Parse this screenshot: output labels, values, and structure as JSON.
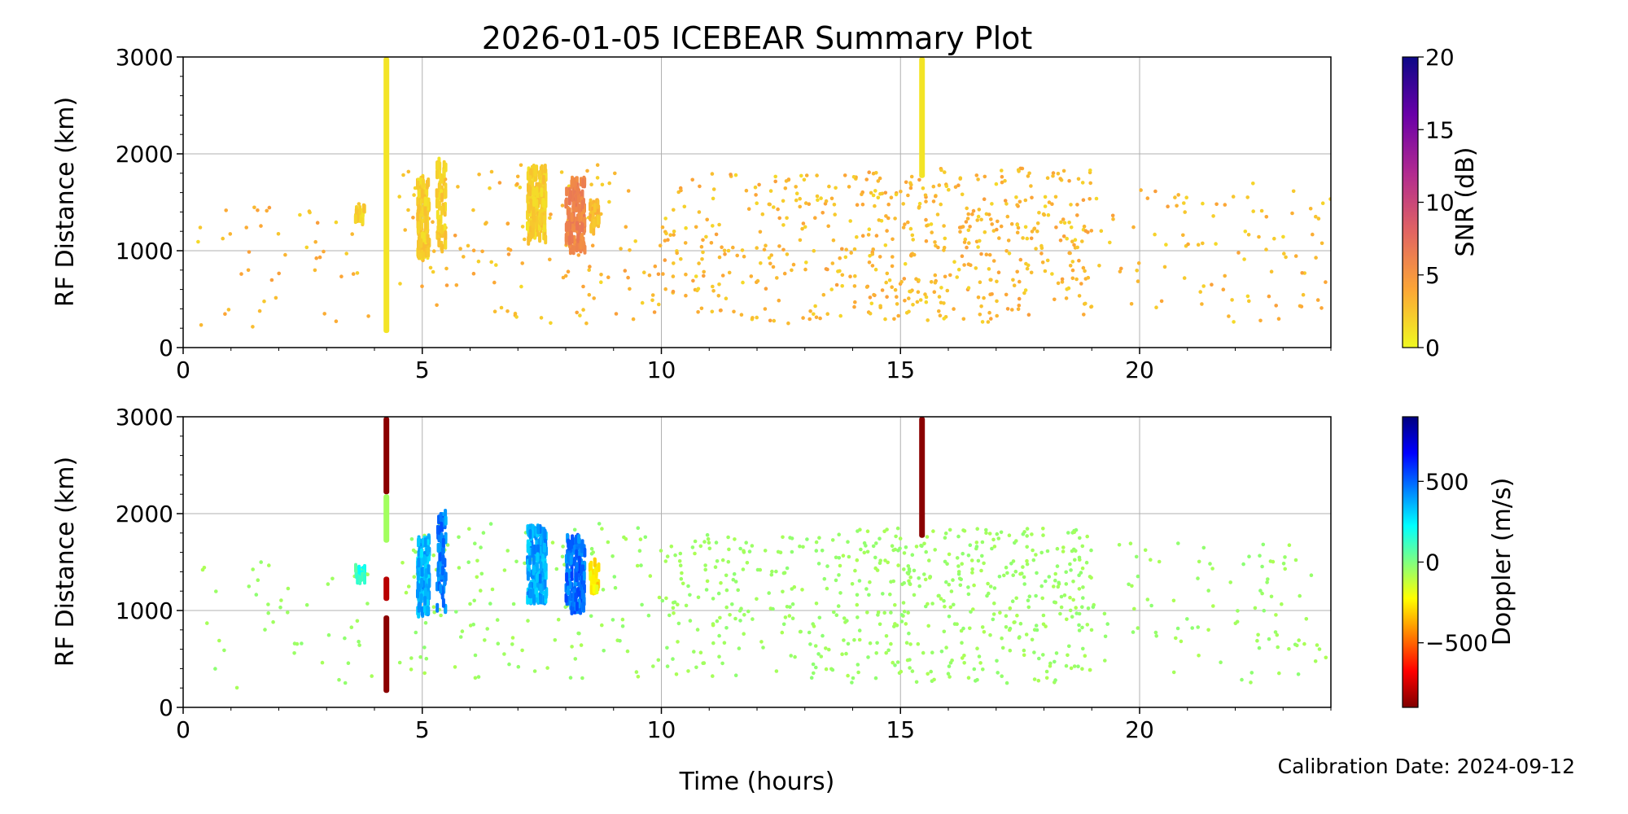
{
  "figure": {
    "title": "2026-01-05 ICEBEAR Summary Plot",
    "calibration_label": "Calibration Date: 2024-09-12"
  },
  "chart_data": [
    {
      "type": "scatter",
      "panel": "top",
      "xlabel": "",
      "ylabel": "RF Distance (km)",
      "xlim": [
        0,
        24
      ],
      "ylim": [
        0,
        3000
      ],
      "xticks": [
        0,
        5,
        10,
        15,
        20
      ],
      "yticks": [
        0,
        1000,
        2000,
        3000
      ],
      "grid": true,
      "color_variable": "SNR",
      "colorbar": {
        "label": "SNR (dB)",
        "range": [
          0,
          20
        ],
        "ticks": [
          0,
          5,
          10,
          15,
          20
        ],
        "colormap": "plasma_r",
        "stops": [
          "#f0f921",
          "#fca636",
          "#e16462",
          "#b12a90",
          "#6a00a8",
          "#0d0887"
        ]
      },
      "vertical_streaks": [
        {
          "x": 4.25,
          "y0": 150,
          "y1": 3000,
          "color_value": 1
        },
        {
          "x": 15.45,
          "y0": 1750,
          "y1": 3000,
          "color_value": 1
        }
      ],
      "clusters": [
        {
          "x0": 4.9,
          "x1": 5.15,
          "y0": 950,
          "y1": 1750,
          "count": 140,
          "color_value": 2
        },
        {
          "x0": 5.3,
          "x1": 5.5,
          "y0": 1000,
          "y1": 2000,
          "count": 60,
          "color_value": 2
        },
        {
          "x0": 7.2,
          "x1": 7.6,
          "y0": 1100,
          "y1": 1850,
          "count": 170,
          "color_value": 2
        },
        {
          "x0": 8.0,
          "x1": 8.4,
          "y0": 1000,
          "y1": 1750,
          "count": 140,
          "color_value": 6
        },
        {
          "x0": 8.5,
          "x1": 8.7,
          "y0": 1200,
          "y1": 1500,
          "count": 30,
          "color_value": 3
        },
        {
          "x0": 3.6,
          "x1": 3.8,
          "y0": 1300,
          "y1": 1450,
          "count": 20,
          "color_value": 2
        }
      ],
      "scatter_regions": [
        {
          "x0": 0.3,
          "x1": 4.0,
          "y0": 200,
          "y1": 1500,
          "count": 45,
          "color_value": 3
        },
        {
          "x0": 4.5,
          "x1": 10.0,
          "y0": 250,
          "y1": 1900,
          "count": 130,
          "color_value": 3
        },
        {
          "x0": 10.0,
          "x1": 14.0,
          "y0": 250,
          "y1": 1800,
          "count": 190,
          "color_value": 3
        },
        {
          "x0": 14.0,
          "x1": 19.0,
          "y0": 250,
          "y1": 1850,
          "count": 380,
          "color_value": 3
        },
        {
          "x0": 19.0,
          "x1": 24.0,
          "y0": 250,
          "y1": 1700,
          "count": 90,
          "color_value": 3
        }
      ]
    },
    {
      "type": "scatter",
      "panel": "bottom",
      "xlabel": "Time (hours)",
      "ylabel": "RF Distance (km)",
      "xlim": [
        0,
        24
      ],
      "ylim": [
        0,
        3000
      ],
      "xticks": [
        0,
        5,
        10,
        15,
        20
      ],
      "yticks": [
        0,
        1000,
        2000,
        3000
      ],
      "grid": true,
      "color_variable": "Doppler",
      "colorbar": {
        "label": "Doppler (m/s)",
        "range": [
          -900,
          900
        ],
        "ticks": [
          -500,
          0,
          500
        ],
        "tick_labels": [
          "−500",
          "0",
          "500"
        ],
        "colormap": "jet_r",
        "stops": [
          "#7f0000",
          "#ff0000",
          "#ff8000",
          "#ffff00",
          "#80ff80",
          "#00ffff",
          "#0080ff",
          "#0000ff",
          "#00007f"
        ]
      },
      "vertical_streaks": [
        {
          "x": 4.25,
          "y0": 2200,
          "y1": 3000,
          "color_value": -880
        },
        {
          "x": 4.25,
          "y0": 1700,
          "y1": 2200,
          "color_value": -60
        },
        {
          "x": 4.25,
          "y0": 1100,
          "y1": 1350,
          "color_value": -800
        },
        {
          "x": 4.25,
          "y0": 150,
          "y1": 950,
          "color_value": -880
        },
        {
          "x": 15.45,
          "y0": 1750,
          "y1": 3000,
          "color_value": -880
        }
      ],
      "clusters": [
        {
          "x0": 4.9,
          "x1": 5.15,
          "y0": 950,
          "y1": 1750,
          "count": 140,
          "color_value": 350
        },
        {
          "x0": 5.3,
          "x1": 5.5,
          "y0": 1000,
          "y1": 2000,
          "count": 60,
          "color_value": 450
        },
        {
          "x0": 7.2,
          "x1": 7.6,
          "y0": 1100,
          "y1": 1850,
          "count": 170,
          "color_value": 380
        },
        {
          "x0": 8.0,
          "x1": 8.4,
          "y0": 1000,
          "y1": 1750,
          "count": 140,
          "color_value": 480
        },
        {
          "x0": 8.5,
          "x1": 8.7,
          "y0": 1200,
          "y1": 1500,
          "count": 30,
          "color_value": -250
        },
        {
          "x0": 3.6,
          "x1": 3.8,
          "y0": 1300,
          "y1": 1450,
          "count": 20,
          "color_value": 150
        }
      ],
      "scatter_regions": [
        {
          "x0": 0.3,
          "x1": 4.0,
          "y0": 200,
          "y1": 1500,
          "count": 45,
          "color_value": -50
        },
        {
          "x0": 4.5,
          "x1": 10.0,
          "y0": 250,
          "y1": 1900,
          "count": 130,
          "color_value": -50
        },
        {
          "x0": 10.0,
          "x1": 14.0,
          "y0": 250,
          "y1": 1800,
          "count": 190,
          "color_value": -50
        },
        {
          "x0": 14.0,
          "x1": 19.0,
          "y0": 250,
          "y1": 1850,
          "count": 380,
          "color_value": -50
        },
        {
          "x0": 19.0,
          "x1": 24.0,
          "y0": 250,
          "y1": 1700,
          "count": 90,
          "color_value": -50
        }
      ]
    }
  ]
}
